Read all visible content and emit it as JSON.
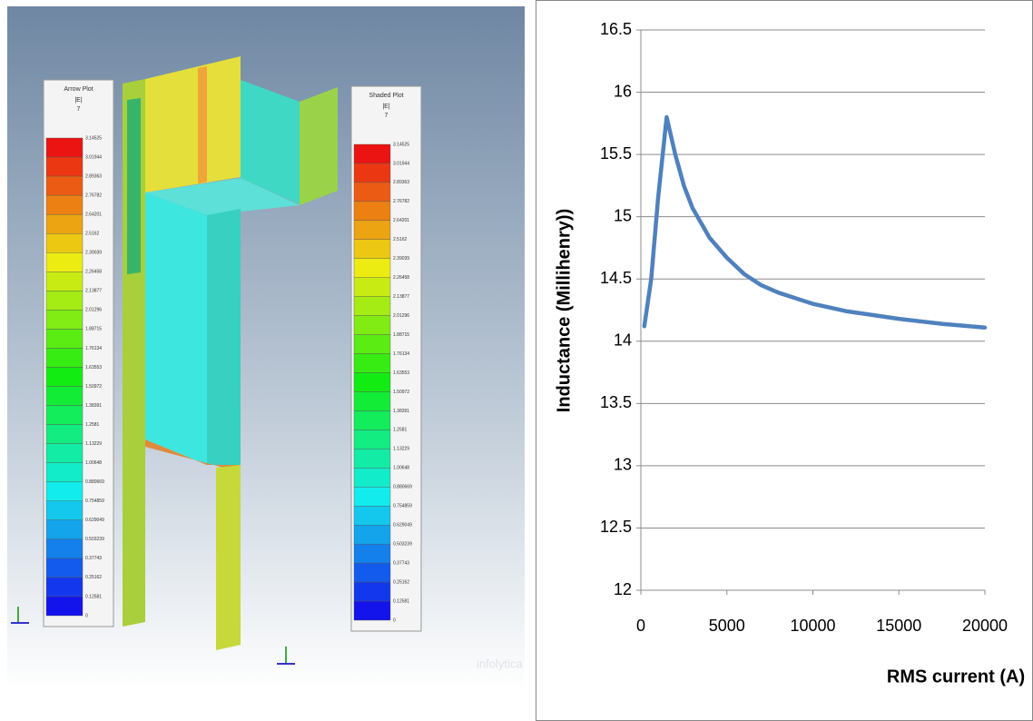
{
  "chart_data": {
    "type": "line",
    "x": [
      200,
      600,
      1000,
      1500,
      2000,
      2500,
      3000,
      4000,
      5000,
      6000,
      7000,
      8000,
      10000,
      12000,
      15000,
      17500,
      20000
    ],
    "values": [
      14.12,
      14.5,
      15.15,
      15.8,
      15.5,
      15.25,
      15.07,
      14.83,
      14.67,
      14.54,
      14.45,
      14.39,
      14.3,
      14.24,
      14.18,
      14.14,
      14.11
    ],
    "color": "#4f81bd",
    "xlim": [
      0,
      20000
    ],
    "xticks": [
      0,
      5000,
      10000,
      15000,
      20000
    ],
    "ylim": [
      12,
      16.5
    ],
    "yticks": [
      12,
      12.5,
      13,
      13.5,
      14,
      14.5,
      15,
      15.5,
      16,
      16.5
    ],
    "grid": true,
    "xlabel": "RMS current (A)",
    "ylabel": "Inductance (Millihenry))"
  },
  "simulation": {
    "legends": [
      {
        "title": "Arrow Plot",
        "quantity": "|E|",
        "step": "7",
        "levels": [
          "3.14525",
          "3.01944",
          "2.89363",
          "2.76782",
          "2.64201",
          "2.5162",
          "2.39039",
          "2.26458",
          "2.13877",
          "2.01296",
          "1.88715",
          "1.76134",
          "1.63553",
          "1.50972",
          "1.38391",
          "1.2581",
          "1.13229",
          "1.00648",
          "0.880669",
          "0.754859",
          "0.629049",
          "0.503239",
          "0.37743",
          "0.25162",
          "0.12581",
          "0"
        ]
      },
      {
        "title": "Shaded Plot",
        "quantity": "|E|",
        "step": "7",
        "levels": [
          "3.14525",
          "3.01944",
          "2.89363",
          "2.76782",
          "2.64201",
          "2.5162",
          "2.39039",
          "2.26458",
          "2.13877",
          "2.01296",
          "1.88715",
          "1.76134",
          "1.63553",
          "1.50972",
          "1.38391",
          "1.2581",
          "1.13229",
          "1.00648",
          "0.880669",
          "0.754859",
          "0.629049",
          "0.503239",
          "0.37743",
          "0.25162",
          "0.12581",
          "0"
        ]
      }
    ],
    "watermark": "infolytica"
  }
}
